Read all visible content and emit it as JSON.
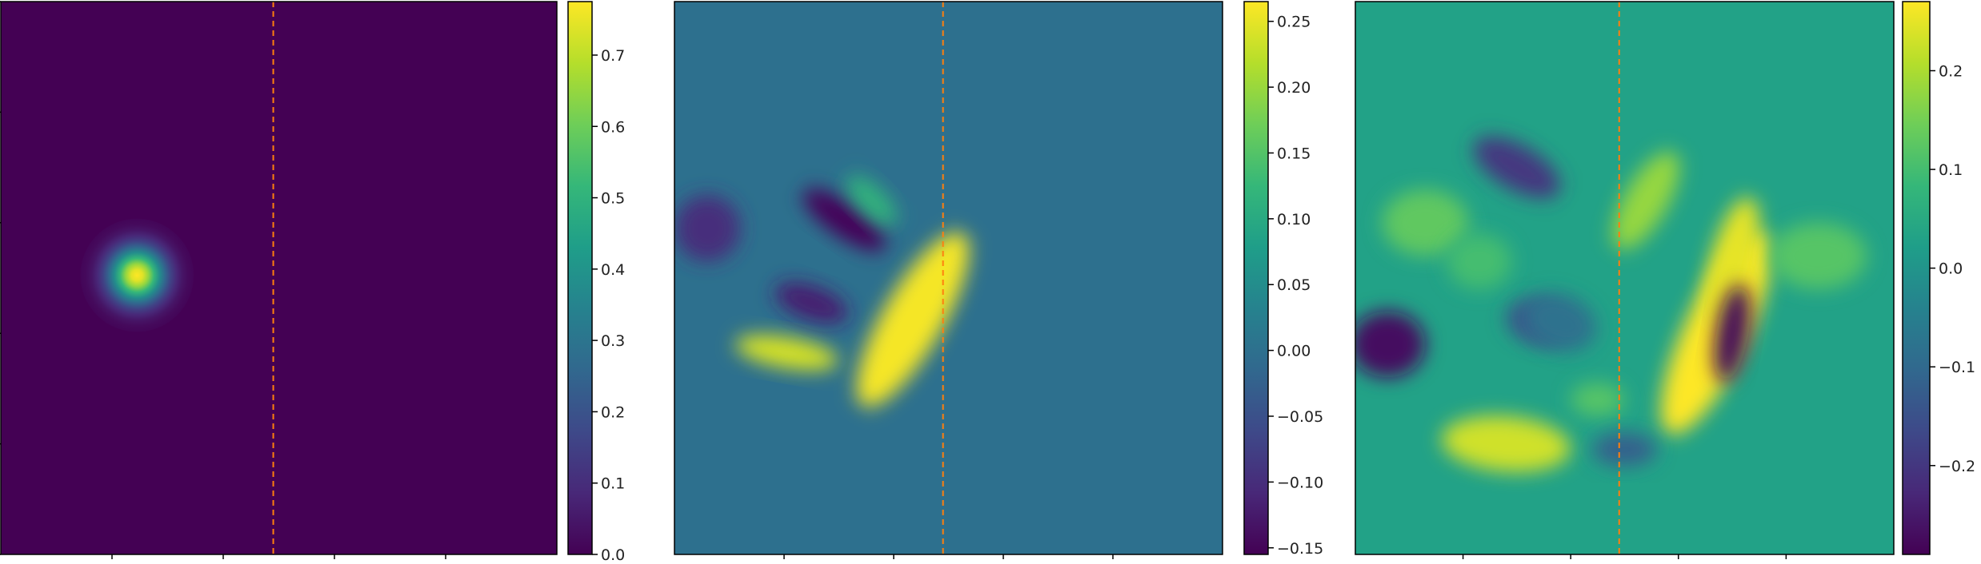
{
  "figure": {
    "colormap": "viridis",
    "colormap_stops": [
      "#440154",
      "#482878",
      "#3e4989",
      "#31688e",
      "#26828e",
      "#1f9e89",
      "#35b779",
      "#6ece58",
      "#b5de2b",
      "#fde725"
    ],
    "marker_line_color": "#ff7f0e"
  },
  "chart_data": [
    {
      "type": "heatmap",
      "panel": "left",
      "field": "initial",
      "title": "",
      "xlabel": "",
      "ylabel": "",
      "marker_line": {
        "style": "dashed",
        "x_fraction": 0.49
      },
      "colorbar": {
        "vmin": 0.0,
        "vmax": 0.775,
        "ticks": [
          0.0,
          0.1,
          0.2,
          0.3,
          0.4,
          0.5,
          0.6,
          0.7
        ],
        "tick_labels": [
          "0.0",
          "0.1",
          "0.2",
          "0.3",
          "0.4",
          "0.5",
          "0.6",
          "0.7"
        ]
      },
      "features": [
        {
          "shape": "gaussian",
          "cx": 0.245,
          "cy": 0.495,
          "sigma": 0.034,
          "peak": 0.775
        }
      ]
    },
    {
      "type": "heatmap",
      "panel": "middle",
      "field": "evolved",
      "title": "",
      "xlabel": "",
      "ylabel": "",
      "marker_line": {
        "style": "dashed",
        "x_fraction": 0.49
      },
      "colorbar": {
        "vmin": -0.155,
        "vmax": 0.265,
        "ticks": [
          -0.15,
          -0.1,
          -0.05,
          0.0,
          0.05,
          0.1,
          0.15,
          0.2,
          0.25
        ],
        "tick_labels": [
          "−0.15",
          "−0.10",
          "−0.05",
          "0.00",
          "0.05",
          "0.10",
          "0.15",
          "0.20",
          "0.25"
        ]
      },
      "background_value": 0.0,
      "features": [
        {
          "shape": "blob",
          "cx": 0.435,
          "cy": 0.575,
          "rx": 0.055,
          "ry": 0.18,
          "rot": 30,
          "value": 0.26
        },
        {
          "shape": "blob",
          "cx": 0.205,
          "cy": 0.635,
          "rx": 0.095,
          "ry": 0.028,
          "rot": 10,
          "value": 0.24
        },
        {
          "shape": "blob",
          "cx": 0.31,
          "cy": 0.395,
          "rx": 0.09,
          "ry": 0.03,
          "rot": 35,
          "value": -0.15
        },
        {
          "shape": "blob",
          "cx": 0.25,
          "cy": 0.545,
          "rx": 0.07,
          "ry": 0.03,
          "rot": 20,
          "value": -0.12
        },
        {
          "shape": "blob",
          "cx": 0.06,
          "cy": 0.41,
          "rx": 0.06,
          "ry": 0.06,
          "rot": 0,
          "value": -0.1
        },
        {
          "shape": "blob",
          "cx": 0.36,
          "cy": 0.36,
          "rx": 0.06,
          "ry": 0.025,
          "rot": 45,
          "value": 0.12
        }
      ]
    },
    {
      "type": "heatmap",
      "panel": "right",
      "field": "reconstructed",
      "title": "",
      "xlabel": "",
      "ylabel": "",
      "marker_line": {
        "style": "dashed",
        "x_fraction": 0.49
      },
      "colorbar": {
        "vmin": -0.29,
        "vmax": 0.27,
        "ticks": [
          -0.2,
          -0.1,
          0.0,
          0.1,
          0.2
        ],
        "tick_labels": [
          "−0.2",
          "−0.1",
          "0.0",
          "0.1",
          "0.2"
        ]
      },
      "background_value": 0.03,
      "features": [
        {
          "shape": "blob",
          "cx": 0.67,
          "cy": 0.6,
          "rx": 0.06,
          "ry": 0.2,
          "rot": 25,
          "value": 0.27
        },
        {
          "shape": "blob",
          "cx": 0.7,
          "cy": 0.47,
          "rx": 0.04,
          "ry": 0.12,
          "rot": 15,
          "value": 0.25
        },
        {
          "shape": "blob",
          "cx": 0.54,
          "cy": 0.36,
          "rx": 0.04,
          "ry": 0.1,
          "rot": 30,
          "value": 0.18
        },
        {
          "shape": "blob",
          "cx": 0.7,
          "cy": 0.6,
          "rx": 0.03,
          "ry": 0.09,
          "rot": 10,
          "value": -0.28
        },
        {
          "shape": "blob",
          "cx": 0.06,
          "cy": 0.62,
          "rx": 0.07,
          "ry": 0.06,
          "rot": 0,
          "value": -0.27
        },
        {
          "shape": "blob",
          "cx": 0.3,
          "cy": 0.3,
          "rx": 0.09,
          "ry": 0.04,
          "rot": 30,
          "value": -0.2
        },
        {
          "shape": "blob",
          "cx": 0.34,
          "cy": 0.58,
          "rx": 0.06,
          "ry": 0.04,
          "rot": 15,
          "value": -0.15
        },
        {
          "shape": "blob",
          "cx": 0.28,
          "cy": 0.8,
          "rx": 0.12,
          "ry": 0.05,
          "rot": 5,
          "value": 0.23
        },
        {
          "shape": "blob",
          "cx": 0.13,
          "cy": 0.4,
          "rx": 0.08,
          "ry": 0.06,
          "rot": 0,
          "value": 0.13
        },
        {
          "shape": "blob",
          "cx": 0.23,
          "cy": 0.47,
          "rx": 0.06,
          "ry": 0.05,
          "rot": 0,
          "value": 0.1
        },
        {
          "shape": "blob",
          "cx": 0.86,
          "cy": 0.46,
          "rx": 0.09,
          "ry": 0.06,
          "rot": 0,
          "value": 0.12
        },
        {
          "shape": "blob",
          "cx": 0.45,
          "cy": 0.72,
          "rx": 0.05,
          "ry": 0.03,
          "rot": 0,
          "value": 0.12
        },
        {
          "shape": "blob",
          "cx": 0.5,
          "cy": 0.81,
          "rx": 0.06,
          "ry": 0.03,
          "rot": 0,
          "value": -0.12
        },
        {
          "shape": "blob",
          "cx": 0.38,
          "cy": 0.58,
          "rx": 0.07,
          "ry": 0.05,
          "rot": 20,
          "value": -0.08
        }
      ]
    }
  ]
}
